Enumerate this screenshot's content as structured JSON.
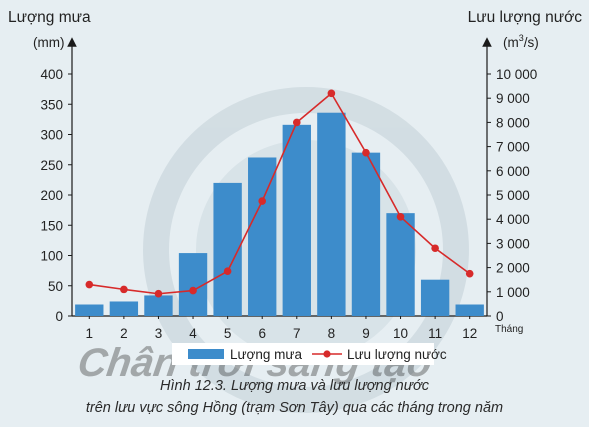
{
  "chart_data": {
    "type": "bar+line",
    "categories": [
      "1",
      "2",
      "3",
      "4",
      "5",
      "6",
      "7",
      "8",
      "9",
      "10",
      "11",
      "12"
    ],
    "x_unit_label": "Tháng",
    "left_axis": {
      "title": "Lượng mưa",
      "unit": "(mm)",
      "ylim": [
        0,
        400
      ],
      "ticks": [
        "0",
        "50",
        "100",
        "150",
        "200",
        "250",
        "300",
        "350",
        "400"
      ]
    },
    "right_axis": {
      "title": "Lưu lượng nước",
      "unit_prefix": "(m",
      "unit_sup": "3",
      "unit_suffix": "/s)",
      "ylim": [
        0,
        10000
      ],
      "ticks": [
        "0",
        "1 000",
        "2 000",
        "3 000",
        "4 000",
        "5 000",
        "6 000",
        "7 000",
        "8 000",
        "9 000",
        "10 000"
      ]
    },
    "series": [
      {
        "name": "Lượng mưa",
        "type": "bar",
        "axis": "left",
        "color": "#3d8ccb",
        "values": [
          19,
          24,
          34,
          104,
          220,
          262,
          316,
          336,
          270,
          170,
          60,
          19
        ]
      },
      {
        "name": "Lưu lượng nước",
        "type": "line",
        "axis": "right",
        "color": "#d72a2a",
        "values": [
          1300,
          1100,
          920,
          1050,
          1850,
          4750,
          8000,
          9200,
          6750,
          4100,
          2800,
          1750
        ]
      }
    ],
    "grid": false,
    "legend": "bottom"
  },
  "caption": {
    "line1": "Hình 12.3. Lượng mưa và lưu lượng nước",
    "line2": "trên lưu vực sông Hồng (trạm Sơn Tây) qua các tháng trong năm"
  },
  "watermark": "Chân trời sáng tạo",
  "colors": {
    "background": "#e6eef2",
    "axis": "#1a1a1a",
    "legend_box": "#ffffff"
  }
}
